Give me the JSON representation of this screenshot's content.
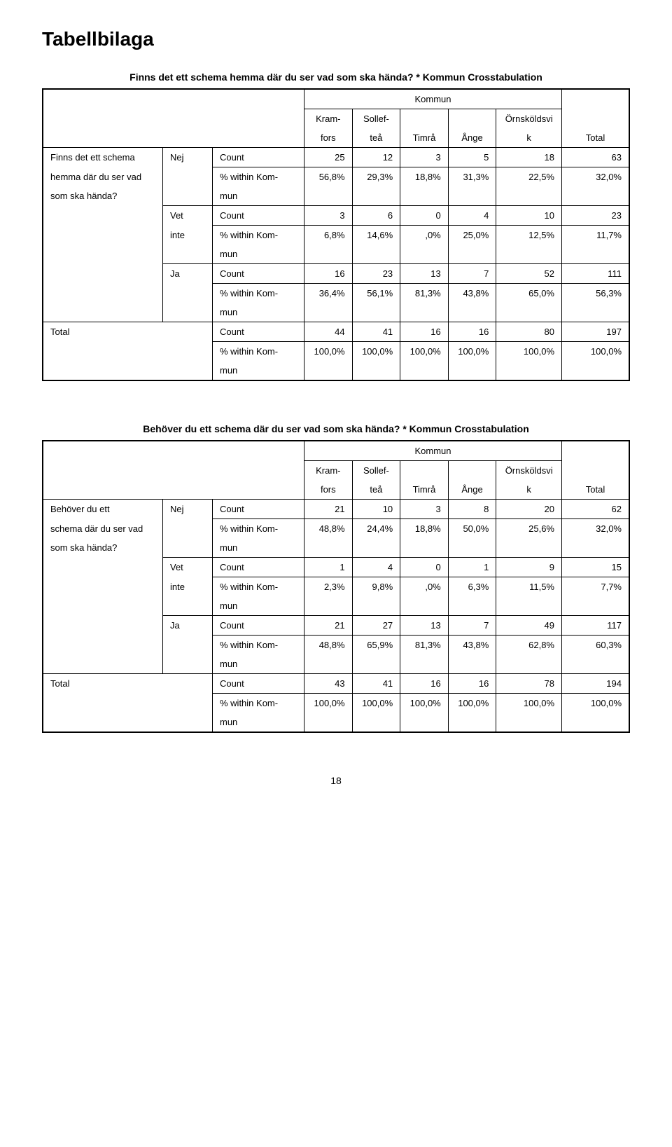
{
  "page_title": "Tabellbilaga",
  "page_number": "18",
  "group_header": "Kommun",
  "col_headers": {
    "kram_top": "Kram-",
    "kram_bot": "fors",
    "sol_top": "Sollef-",
    "sol_bot": "teå",
    "timra": "Timrå",
    "ange": "Ånge",
    "orn_top": "Örnsköldsvi",
    "orn_bot": "k",
    "total": "Total"
  },
  "row_labels": {
    "count": "Count",
    "within_top": "% within Kom-",
    "within_bot": "mun",
    "nej": "Nej",
    "vet": "Vet",
    "inte": "inte",
    "ja": "Ja",
    "total": "Total"
  },
  "table1": {
    "title": "Finns det ett schema hemma där du ser vad som ska hända? * Kommun Crosstabulation",
    "stub_l1": "Finns det ett schema",
    "stub_l2": "hemma där du ser vad",
    "stub_l3": "som ska hända?",
    "nej": {
      "count": [
        "25",
        "12",
        "3",
        "5",
        "18",
        "63"
      ],
      "pct": [
        "56,8%",
        "29,3%",
        "18,8%",
        "31,3%",
        "22,5%",
        "32,0%"
      ]
    },
    "vet": {
      "count": [
        "3",
        "6",
        "0",
        "4",
        "10",
        "23"
      ],
      "pct": [
        "6,8%",
        "14,6%",
        ",0%",
        "25,0%",
        "12,5%",
        "11,7%"
      ]
    },
    "ja": {
      "count": [
        "16",
        "23",
        "13",
        "7",
        "52",
        "111"
      ],
      "pct": [
        "36,4%",
        "56,1%",
        "81,3%",
        "43,8%",
        "65,0%",
        "56,3%"
      ]
    },
    "total": {
      "count": [
        "44",
        "41",
        "16",
        "16",
        "80",
        "197"
      ],
      "pct": [
        "100,0%",
        "100,0%",
        "100,0%",
        "100,0%",
        "100,0%",
        "100,0%"
      ]
    }
  },
  "table2": {
    "title": "Behöver du ett schema där du ser vad som ska hända? * Kommun Crosstabulation",
    "stub_l1": "Behöver du ett",
    "stub_l2": "schema där du ser vad",
    "stub_l3": "som ska hända?",
    "nej": {
      "count": [
        "21",
        "10",
        "3",
        "8",
        "20",
        "62"
      ],
      "pct": [
        "48,8%",
        "24,4%",
        "18,8%",
        "50,0%",
        "25,6%",
        "32,0%"
      ]
    },
    "vet": {
      "count": [
        "1",
        "4",
        "0",
        "1",
        "9",
        "15"
      ],
      "pct": [
        "2,3%",
        "9,8%",
        ",0%",
        "6,3%",
        "11,5%",
        "7,7%"
      ]
    },
    "ja": {
      "count": [
        "21",
        "27",
        "13",
        "7",
        "49",
        "117"
      ],
      "pct": [
        "48,8%",
        "65,9%",
        "81,3%",
        "43,8%",
        "62,8%",
        "60,3%"
      ]
    },
    "total": {
      "count": [
        "43",
        "41",
        "16",
        "16",
        "78",
        "194"
      ],
      "pct": [
        "100,0%",
        "100,0%",
        "100,0%",
        "100,0%",
        "100,0%",
        "100,0%"
      ]
    }
  }
}
